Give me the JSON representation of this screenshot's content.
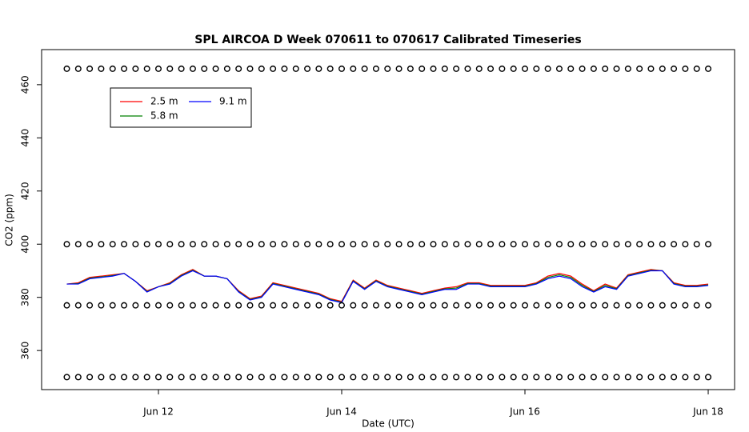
{
  "chart_data": {
    "type": "line",
    "title": "SPL AIRCOA D  Week 070611 to 070617  Calibrated Timeseries",
    "x_label": "Date (UTC)",
    "y_label": "CO2 (ppm)",
    "x": [
      11.0,
      11.125,
      11.25,
      11.375,
      11.5,
      11.625,
      11.75,
      11.875,
      12.0,
      12.125,
      12.25,
      12.375,
      12.5,
      12.625,
      12.75,
      12.875,
      13.0,
      13.125,
      13.25,
      13.375,
      13.5,
      13.625,
      13.75,
      13.875,
      14.0,
      14.125,
      14.25,
      14.375,
      14.5,
      14.625,
      14.75,
      14.875,
      15.0,
      15.125,
      15.25,
      15.375,
      15.5,
      15.625,
      15.75,
      15.875,
      16.0,
      16.125,
      16.25,
      16.375,
      16.5,
      16.625,
      16.75,
      16.875,
      17.0,
      17.125,
      17.25,
      17.375,
      17.5,
      17.625,
      17.75,
      17.875,
      18.0
    ],
    "series": [
      {
        "name": "2.5 m",
        "color": "#ff0000",
        "values": [
          385,
          385.5,
          387.5,
          388,
          388.5,
          389,
          386,
          382.5,
          384,
          385.5,
          388.5,
          390.5,
          388,
          388,
          387,
          382.5,
          379.5,
          380.5,
          385.5,
          384.5,
          383.5,
          382.5,
          381.5,
          379.5,
          378.5,
          386.5,
          383.5,
          386.5,
          384.5,
          383.5,
          382.5,
          381.5,
          382.5,
          383.5,
          384,
          385.5,
          385.5,
          384.5,
          384.5,
          384.5,
          384.5,
          385.5,
          388,
          389,
          388,
          385,
          382.5,
          385,
          383.5,
          388.5,
          389.5,
          390.5,
          390,
          385.5,
          384.5,
          384.5,
          385
        ]
      },
      {
        "name": "9.1 m",
        "color": "#0000ff",
        "values": [
          385,
          385,
          387,
          387.5,
          388,
          389,
          386,
          382,
          384,
          385,
          388,
          390,
          388,
          388,
          387,
          382,
          379,
          380,
          385,
          384,
          383,
          382,
          381,
          379,
          378,
          386,
          383,
          386,
          384,
          383,
          382,
          381,
          382,
          383,
          383,
          385,
          385,
          384,
          384,
          384,
          384,
          385,
          387,
          388,
          387,
          384,
          382,
          384,
          383,
          388,
          389,
          390,
          390,
          385,
          384,
          384,
          384.5
        ]
      },
      {
        "name": "5.8 m",
        "color": "#008000",
        "values": [
          385,
          385.2,
          387.2,
          387.7,
          388.2,
          389,
          386,
          382.2,
          384,
          385.2,
          388.2,
          390.2,
          388,
          388,
          387,
          382.2,
          379.2,
          380.2,
          385.2,
          384.2,
          383.2,
          382.2,
          381.2,
          379.2,
          378.2,
          386.2,
          383.2,
          386.2,
          384.2,
          383.2,
          382.2,
          381.2,
          382.2,
          383.2,
          383.5,
          385.2,
          385.2,
          384.2,
          384.2,
          384.2,
          384.2,
          385.2,
          387.5,
          388.5,
          387.5,
          384.5,
          382.2,
          384.5,
          383.2,
          388.2,
          389.2,
          390.2,
          390,
          385.2,
          384.2,
          384.2,
          384.7
        ]
      },
      {
        "color": "#000000",
        "marker": "circle",
        "values": [
          466,
          466,
          466,
          466,
          466,
          466,
          466,
          466,
          466,
          466,
          466,
          466,
          466,
          466,
          466,
          466,
          466,
          466,
          466,
          466,
          466,
          466,
          466,
          466,
          466,
          466,
          466,
          466,
          466,
          466,
          466,
          466,
          466,
          466,
          466,
          466,
          466,
          466,
          466,
          466,
          466,
          466,
          466,
          466,
          466,
          466,
          466,
          466,
          466,
          466,
          466,
          466,
          466,
          466,
          466,
          466,
          466
        ]
      },
      {
        "color": "#000000",
        "marker": "circle",
        "values": [
          400,
          400,
          400,
          400,
          400,
          400,
          400,
          400,
          400,
          400,
          400,
          400,
          400,
          400,
          400,
          400,
          400,
          400,
          400,
          400,
          400,
          400,
          400,
          400,
          400,
          400,
          400,
          400,
          400,
          400,
          400,
          400,
          400,
          400,
          400,
          400,
          400,
          400,
          400,
          400,
          400,
          400,
          400,
          400,
          400,
          400,
          400,
          400,
          400,
          400,
          400,
          400,
          400,
          400,
          400,
          400,
          400
        ]
      },
      {
        "color": "#000000",
        "marker": "circle",
        "values": [
          377,
          377,
          377,
          377,
          377,
          377,
          377,
          377,
          377,
          377,
          377,
          377,
          377,
          377,
          377,
          377,
          377,
          377,
          377,
          377,
          377,
          377,
          377,
          377,
          377,
          377,
          377,
          377,
          377,
          377,
          377,
          377,
          377,
          377,
          377,
          377,
          377,
          377,
          377,
          377,
          377,
          377,
          377,
          377,
          377,
          377,
          377,
          377,
          377,
          377,
          377,
          377,
          377,
          377,
          377,
          377,
          377
        ]
      },
      {
        "color": "#000000",
        "marker": "circle",
        "values": [
          350,
          350,
          350,
          350,
          350,
          350,
          350,
          350,
          350,
          350,
          350,
          350,
          350,
          350,
          350,
          350,
          350,
          350,
          350,
          350,
          350,
          350,
          350,
          350,
          350,
          350,
          350,
          350,
          350,
          350,
          350,
          350,
          350,
          350,
          350,
          350,
          350,
          350,
          350,
          350,
          350,
          350,
          350,
          350,
          350,
          350,
          350,
          350,
          350,
          350,
          350,
          350,
          350,
          350,
          350,
          350,
          350
        ]
      }
    ],
    "xlim": [
      10.725,
      18.288
    ],
    "xticks": [
      {
        "value": 12,
        "label": "Jun 12"
      },
      {
        "value": 14,
        "label": "Jun 14"
      },
      {
        "value": 16,
        "label": "Jun 16"
      },
      {
        "value": 18,
        "label": "Jun 18"
      }
    ],
    "ylim": [
      345.3,
      473.2
    ],
    "yticks": [
      360,
      380,
      400,
      420,
      440,
      460
    ],
    "legend": "topleft"
  }
}
